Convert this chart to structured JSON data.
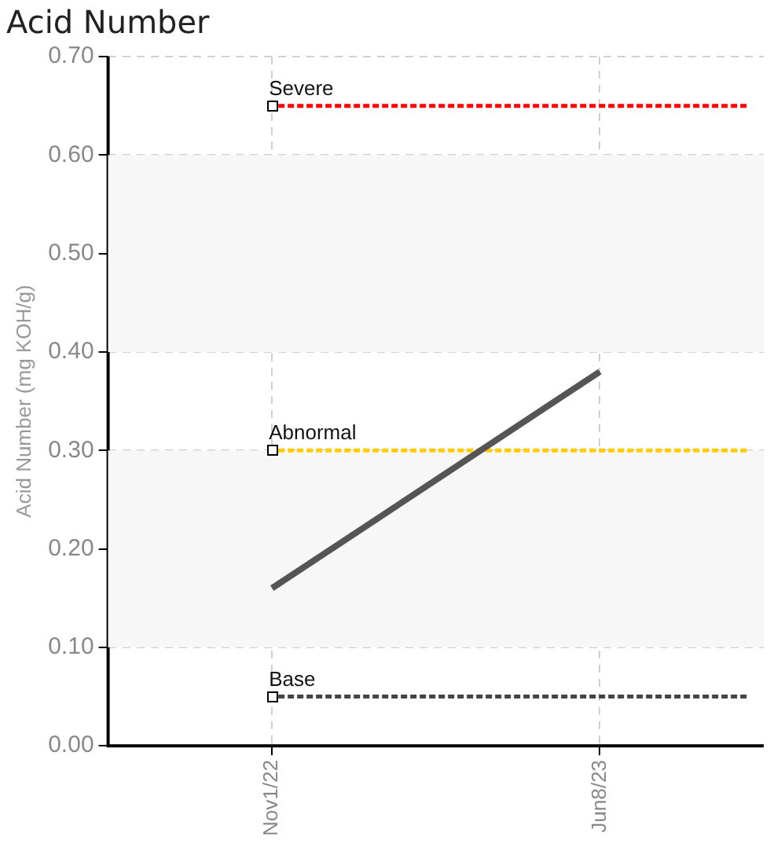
{
  "chart_data": {
    "type": "line",
    "title": "Acid Number",
    "ylabel": "Acid Number (mg KOH/g)",
    "categories": [
      "Nov1/22",
      "Jun8/23"
    ],
    "series": [
      {
        "color": "#555555",
        "values": [
          0.16,
          0.38
        ]
      }
    ],
    "ylim": [
      0,
      0.7
    ],
    "yticks": [
      {
        "value": 0,
        "label": "0.00"
      },
      {
        "value": 0.1,
        "label": "0.10"
      },
      {
        "value": 0.2,
        "label": "0.20"
      },
      {
        "value": 0.3,
        "label": "0.30"
      },
      {
        "value": 0.4,
        "label": "0.40"
      },
      {
        "value": 0.5,
        "label": "0.50"
      },
      {
        "value": 0.6,
        "label": "0.60"
      },
      {
        "value": 0.7,
        "label": "0.70"
      }
    ],
    "ref_lines": [
      {
        "axis": "y",
        "value": 0.65,
        "label": "Severe",
        "color": "#ff0000",
        "line_style": "dashed"
      },
      {
        "axis": "y",
        "value": 0.3,
        "label": "Abnormal",
        "color": "#ffcc00",
        "line_style": "dashed"
      },
      {
        "axis": "y",
        "value": 0.05,
        "label": "Base",
        "color": "#444444",
        "line_style": "dashed"
      }
    ],
    "bands": [
      {
        "axis": "y",
        "from": 0.4,
        "to": 0.6,
        "color": "#f7f7f7"
      },
      {
        "axis": "y",
        "from": 0.1,
        "to": 0.3,
        "color": "#f7f7f7"
      }
    ],
    "grid": true,
    "legend": false,
    "marker": "none",
    "line_style": "solid"
  }
}
